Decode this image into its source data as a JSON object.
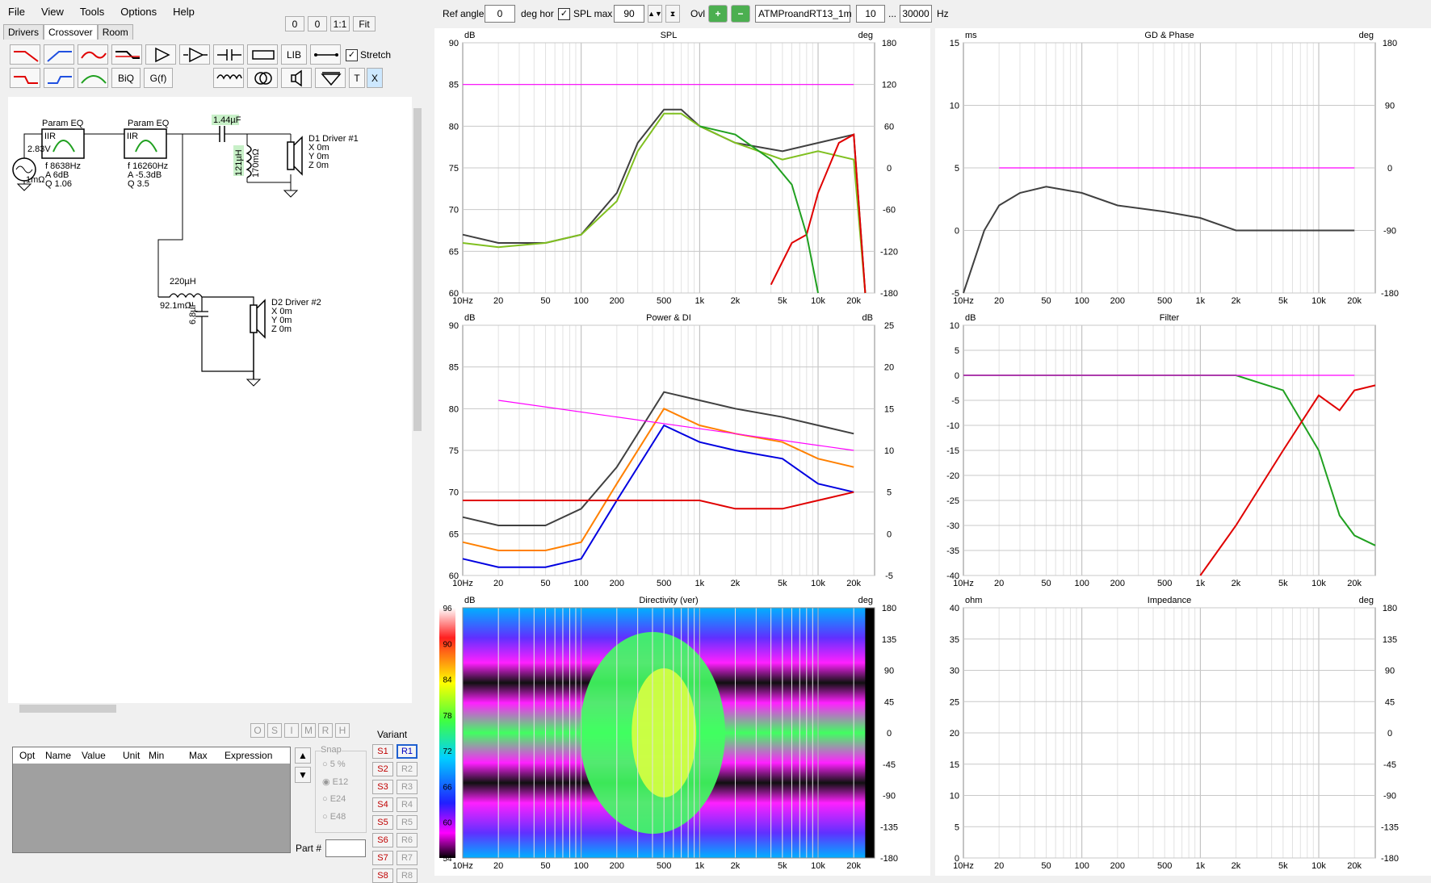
{
  "menu": [
    "File",
    "View",
    "Tools",
    "Options",
    "Help"
  ],
  "zoom_buttons": [
    "0",
    "0",
    "1:1",
    "Fit"
  ],
  "tabs": [
    "Drivers",
    "Crossover",
    "Room"
  ],
  "toolbar": {
    "lib": "LIB",
    "biq": "BiQ",
    "gf": "G(f)",
    "stretch": "Stretch",
    "t": "T",
    "x": "X"
  },
  "top": {
    "ref_angle_label": "Ref angle",
    "ref_angle": "0",
    "deg_hor": "deg hor",
    "spl_max_label": "SPL max",
    "spl_max": "90",
    "ovl": "Ovl",
    "project": "ATMProandRT13_1m",
    "fmin": "10",
    "dots": "...",
    "fmax": "30000",
    "hz": "Hz"
  },
  "schematic": {
    "peq1": {
      "title": "Param EQ",
      "iir": "IIR",
      "f": "f   8638Hz",
      "a": "A   6dB",
      "q": "Q   1.06"
    },
    "peq2": {
      "title": "Param EQ",
      "iir": "IIR",
      "f": "f   16260Hz",
      "a": "A   -5.3dB",
      "q": "Q   3.5"
    },
    "src": {
      "v": "2.83V",
      "r": "1mΩ"
    },
    "cap1": "1.44µF",
    "ind1": "121µH",
    "ind1r": "170mΩ",
    "d1": {
      "name": "D1 Driver #1",
      "x": "X 0m",
      "y": "Y 0m",
      "z": "Z 0m"
    },
    "ind2": "220µH",
    "ind2r": "92.1mΩ",
    "cap2": "6.8µF",
    "d2": {
      "name": "D2 Driver #2",
      "x": "X 0m",
      "y": "Y 0m",
      "z": "Z 0m"
    }
  },
  "opt_buttons": [
    "O",
    "S",
    "I",
    "M",
    "R",
    "H"
  ],
  "opt_table": {
    "headers": [
      "Opt",
      "Name",
      "Value",
      "Unit",
      "Min",
      "Max",
      "Expression"
    ]
  },
  "snap": {
    "title": "Snap",
    "options": [
      "5 %",
      "E12",
      "E24",
      "E48"
    ],
    "selected": "E12"
  },
  "part_label": "Part #",
  "variant": {
    "title": "Variant",
    "s": [
      "S1",
      "S2",
      "S3",
      "S4",
      "S5",
      "S6",
      "S7",
      "S8"
    ],
    "r": [
      "R1",
      "R2",
      "R3",
      "R4",
      "R5",
      "R6",
      "R7",
      "R8"
    ]
  },
  "freq_ticks": [
    "10Hz",
    "20",
    "50",
    "100",
    "200",
    "500",
    "1k",
    "2k",
    "5k",
    "10k",
    "20k"
  ],
  "charts": {
    "spl": {
      "title": "SPL",
      "lunit": "dB",
      "runit": "deg",
      "left": [
        "90",
        "85",
        "80",
        "75",
        "70",
        "65",
        "60"
      ],
      "right": [
        "180",
        "120",
        "60",
        "0",
        "-60",
        "-120",
        "-180"
      ]
    },
    "gd": {
      "title": "GD & Phase",
      "lunit": "ms",
      "runit": "deg",
      "left": [
        "15",
        "10",
        "5",
        "0",
        "-5"
      ],
      "right": [
        "180",
        "90",
        "0",
        "-90",
        "-180"
      ]
    },
    "power": {
      "title": "Power & DI",
      "lunit": "dB",
      "runit": "dB",
      "left": [
        "90",
        "85",
        "80",
        "75",
        "70",
        "65",
        "60"
      ],
      "right": [
        "25",
        "20",
        "15",
        "10",
        "5",
        "0",
        "-5"
      ]
    },
    "filter": {
      "title": "Filter",
      "lunit": "dB",
      "left": [
        "10",
        "5",
        "0",
        "-5",
        "-10",
        "-15",
        "-20",
        "-25",
        "-30",
        "-35",
        "-40"
      ]
    },
    "dir": {
      "title": "Directivity (ver)",
      "lunit": "dB",
      "runit": "deg",
      "scale": [
        "96",
        "90",
        "84",
        "78",
        "72",
        "66",
        "60",
        "54"
      ],
      "right": [
        "180",
        "135",
        "90",
        "45",
        "0",
        "-45",
        "-90",
        "-135",
        "-180"
      ]
    },
    "imp": {
      "title": "Impedance",
      "lunit": "ohm",
      "runit": "deg",
      "left": [
        "40",
        "35",
        "30",
        "25",
        "20",
        "15",
        "10",
        "5",
        "0"
      ],
      "right": [
        "180",
        "135",
        "90",
        "45",
        "0",
        "-45",
        "-90",
        "-135",
        "-180"
      ]
    }
  },
  "chart_data": [
    {
      "type": "line",
      "title": "SPL",
      "xlabel": "Hz",
      "ylabel": "dB",
      "xscale": "log",
      "xlim": [
        10,
        30000
      ],
      "ylim": [
        60,
        90
      ],
      "series": [
        {
          "color": "#404040",
          "x": [
            10,
            20,
            50,
            100,
            200,
            300,
            500,
            700,
            1000,
            2000,
            5000,
            10000,
            20000,
            25000
          ],
          "y": [
            67,
            66,
            66,
            67,
            72,
            78,
            82,
            82,
            80,
            78,
            77,
            78,
            79,
            60
          ]
        },
        {
          "color": "#80c020",
          "x": [
            10,
            20,
            50,
            100,
            200,
            300,
            500,
            700,
            1000,
            2000,
            5000,
            10000,
            20000,
            25000
          ],
          "y": [
            66,
            65.5,
            66,
            67,
            71,
            77,
            81.5,
            81.5,
            80,
            78,
            76,
            77,
            76,
            60
          ]
        },
        {
          "color": "#e00000",
          "x": [
            4000,
            6000,
            8000,
            10000,
            15000,
            20000,
            25000
          ],
          "y": [
            61,
            66,
            67,
            72,
            78,
            79,
            60
          ]
        },
        {
          "color": "#20a020",
          "x": [
            1000,
            2000,
            4000,
            6000,
            8000,
            10000
          ],
          "y": [
            80,
            79,
            76,
            73,
            67,
            60
          ]
        },
        {
          "color": "#ff00ff",
          "x": [
            10,
            20000
          ],
          "y": [
            85,
            85
          ]
        }
      ]
    },
    {
      "type": "line",
      "title": "GD & Phase",
      "ylabel": "ms",
      "xscale": "log",
      "xlim": [
        10,
        30000
      ],
      "ylim": [
        -5,
        15
      ],
      "series": [
        {
          "color": "#404040",
          "x": [
            10,
            15,
            20,
            30,
            50,
            100,
            200,
            500,
            1000,
            2000,
            5000,
            20000
          ],
          "y": [
            -5,
            0,
            2,
            3,
            3.5,
            3,
            2,
            1.5,
            1,
            0,
            0,
            0
          ]
        },
        {
          "color": "#ff00ff",
          "x": [
            20,
            20000
          ],
          "y": [
            5,
            5
          ]
        }
      ]
    },
    {
      "type": "line",
      "title": "Power & DI",
      "ylabel": "dB",
      "xscale": "log",
      "xlim": [
        10,
        30000
      ],
      "ylim": [
        60,
        90
      ],
      "series": [
        {
          "color": "#404040",
          "x": [
            10,
            20,
            50,
            100,
            200,
            500,
            1000,
            2000,
            5000,
            10000,
            20000
          ],
          "y": [
            67,
            66,
            66,
            68,
            73,
            82,
            81,
            80,
            79,
            78,
            77
          ]
        },
        {
          "color": "#ff8000",
          "x": [
            10,
            20,
            50,
            100,
            200,
            500,
            1000,
            2000,
            5000,
            10000,
            20000
          ],
          "y": [
            64,
            63,
            63,
            64,
            71,
            80,
            78,
            77,
            76,
            74,
            73
          ]
        },
        {
          "color": "#0000e0",
          "x": [
            10,
            20,
            50,
            100,
            200,
            500,
            1000,
            2000,
            5000,
            10000,
            20000
          ],
          "y": [
            62,
            61,
            61,
            62,
            69,
            78,
            76,
            75,
            74,
            71,
            70
          ]
        },
        {
          "color": "#e00000",
          "x": [
            10,
            100,
            1000,
            2000,
            5000,
            10000,
            20000
          ],
          "y": [
            69,
            69,
            69,
            68,
            68,
            69,
            70
          ]
        },
        {
          "color": "#ff00ff",
          "x": [
            20,
            20000
          ],
          "y": [
            81,
            75
          ]
        }
      ]
    },
    {
      "type": "line",
      "title": "Filter",
      "ylabel": "dB",
      "xscale": "log",
      "xlim": [
        10,
        30000
      ],
      "ylim": [
        -40,
        10
      ],
      "series": [
        {
          "color": "#20a020",
          "x": [
            10,
            1000,
            2000,
            5000,
            10000,
            15000,
            20000,
            30000
          ],
          "y": [
            0,
            0,
            0,
            -3,
            -15,
            -28,
            -32,
            -34
          ]
        },
        {
          "color": "#e00000",
          "x": [
            1000,
            2000,
            5000,
            10000,
            15000,
            20000,
            30000
          ],
          "y": [
            -40,
            -30,
            -15,
            -4,
            -7,
            -3,
            -2
          ]
        },
        {
          "color": "#ff00ff",
          "x": [
            10,
            20000
          ],
          "y": [
            0,
            0
          ]
        }
      ]
    }
  ]
}
